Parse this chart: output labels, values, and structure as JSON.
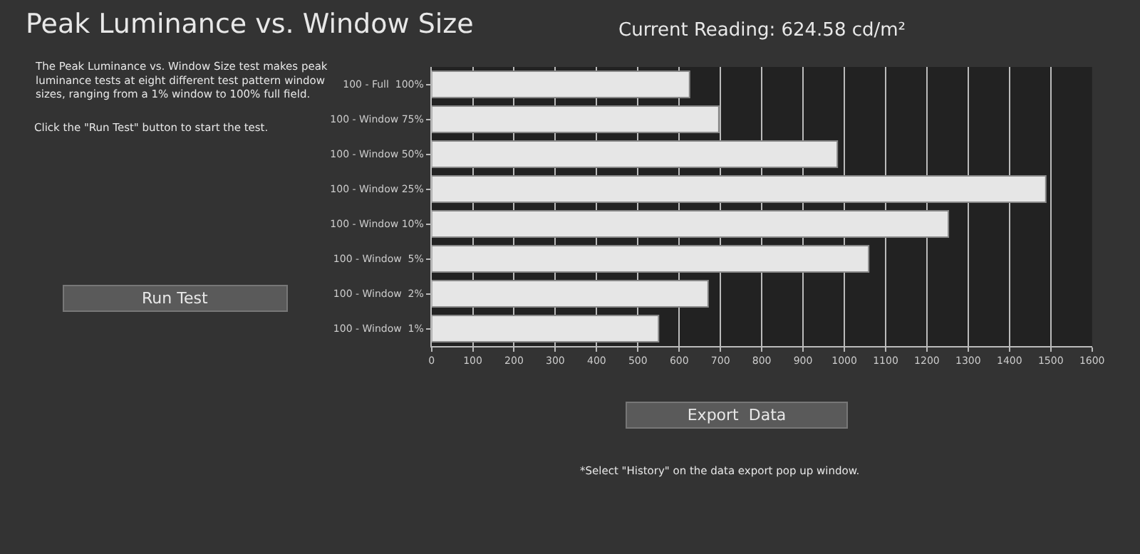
{
  "chart_data": {
    "type": "bar",
    "orientation": "horizontal",
    "title": "Peak Luminance vs. Window Size",
    "subtitle": "Current Reading: 624.58 cd/m²",
    "categories": [
      "100 - Full  100%",
      "100 - Window 75%",
      "100 - Window 50%",
      "100 - Window 25%",
      "100 - Window 10%",
      "100 - Window  5%",
      "100 - Window  2%",
      "100 - Window  1%"
    ],
    "values": [
      625,
      696,
      983,
      1488,
      1252,
      1059,
      670,
      550
    ],
    "color": "#e6e6e6",
    "xlim": [
      0,
      1600
    ],
    "xticks": [
      0,
      100,
      200,
      300,
      400,
      500,
      600,
      700,
      800,
      900,
      1000,
      1100,
      1200,
      1300,
      1400,
      1500,
      1600
    ],
    "grid": "x",
    "annotations": [
      "The Peak Luminance vs. Window Size test makes peak luminance tests at eight different test pattern window sizes, ranging from a 1% window to 100% full field.",
      "Click the \"Run Test\" button to start the test.",
      "Run Test",
      "Export  Data",
      "*Select \"History\" on the data export pop up window."
    ]
  }
}
